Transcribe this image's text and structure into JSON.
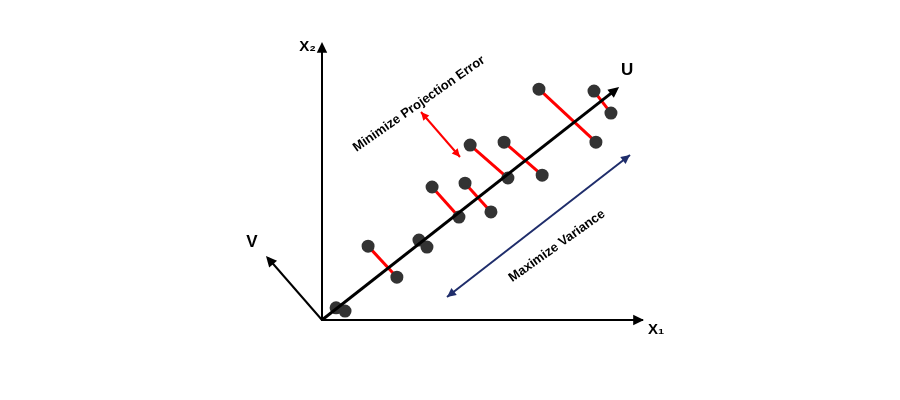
{
  "chart_data": {
    "type": "scatter",
    "x_label": "X₁",
    "y_label": "X₂",
    "xlim": [
      0,
      10
    ],
    "ylim": [
      0,
      8.6
    ],
    "tick_labels": false,
    "grid": false,
    "annotations": [
      {
        "text": "Minimize Projection Error",
        "color": "#ff0000"
      },
      {
        "text": "Maximize Variance",
        "color": "#1f2d6b"
      },
      {
        "text": "V",
        "color": "#000000"
      }
    ],
    "series": [
      {
        "name": "U",
        "type": "line",
        "color": "#000000",
        "marker": "none",
        "x": [
          0,
          9.16
        ],
        "values": [
          0,
          7.19
        ]
      },
      {
        "type": "line",
        "color": "#ff0000",
        "marker": "circle",
        "x": [
          0.44,
          0.72
        ],
        "values": [
          0.38,
          0.28
        ]
      },
      {
        "type": "line",
        "color": "#ff0000",
        "marker": "circle",
        "x": [
          1.44,
          2.34
        ],
        "values": [
          2.31,
          1.34
        ]
      },
      {
        "type": "line",
        "color": "#ff0000",
        "marker": "circle",
        "x": [
          3.03,
          3.28
        ],
        "values": [
          2.5,
          2.28
        ]
      },
      {
        "type": "line",
        "color": "#ff0000",
        "marker": "circle",
        "x": [
          3.44,
          4.28
        ],
        "values": [
          4.16,
          3.22
        ]
      },
      {
        "type": "line",
        "color": "#ff0000",
        "marker": "circle",
        "x": [
          4.47,
          5.28
        ],
        "values": [
          4.28,
          3.38
        ]
      },
      {
        "type": "line",
        "color": "#ff0000",
        "marker": "circle",
        "x": [
          4.63,
          5.81
        ],
        "values": [
          5.47,
          4.44
        ]
      },
      {
        "type": "line",
        "color": "#ff0000",
        "marker": "circle",
        "x": [
          5.69,
          6.88
        ],
        "values": [
          5.56,
          4.53
        ]
      },
      {
        "type": "line",
        "color": "#ff0000",
        "marker": "circle",
        "x": [
          6.78,
          8.56
        ],
        "values": [
          7.22,
          5.56
        ]
      },
      {
        "type": "line",
        "color": "#ff0000",
        "marker": "circle",
        "x": [
          8.5,
          9.03
        ],
        "values": [
          7.16,
          6.47
        ]
      }
    ]
  }
}
